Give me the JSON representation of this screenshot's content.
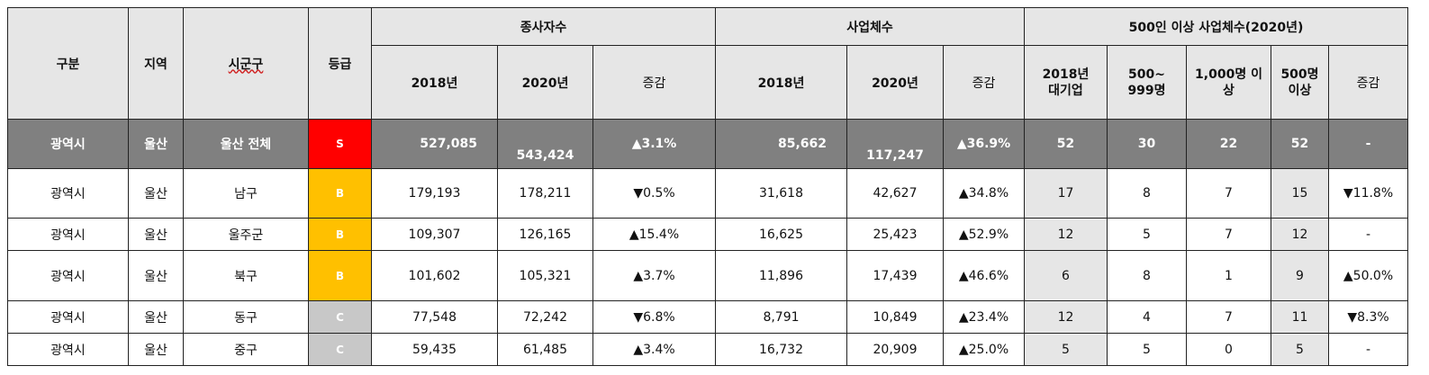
{
  "header": {
    "gubun": "구분",
    "region": "지역",
    "sigungu": "시군구",
    "grade": "등급",
    "employees_group": "종사자수",
    "businesses_group": "사업체수",
    "large_group": "500인 이상 사업체수(2020년)",
    "large_group_underlined": "사업체수",
    "y2018": "2018년",
    "y2020": "2020년",
    "change": "증감",
    "large_2018_line1": "2018년",
    "large_2018_line2": "대기업",
    "large_500_line1": "500~",
    "large_500_line2": "999명",
    "large_1000_line1": "1,000명 이",
    "large_1000_line2": "상",
    "large_500plus_line1": "500명",
    "large_500plus_line2": "이상",
    "large_change": "증감"
  },
  "grade_colors": {
    "S": "#ff0000",
    "B": "#ffc000",
    "C": "#c8c8c8"
  },
  "rows": [
    {
      "gubun": "광역시",
      "region": "울산",
      "sigungu": "울산 전체",
      "grade": "S",
      "emp_2018": "527,085",
      "emp_2020": "543,424",
      "emp_change": "▲3.1%",
      "biz_2018": "85,662",
      "biz_2020": "117,247",
      "biz_change": "▲36.9%",
      "large_2018": "52",
      "large_500_999": "30",
      "large_1000": "22",
      "large_500plus": "52",
      "large_change": "-"
    },
    {
      "gubun": "광역시",
      "region": "울산",
      "sigungu": "남구",
      "grade": "B",
      "emp_2018": "179,193",
      "emp_2020": "178,211",
      "emp_change": "▼0.5%",
      "biz_2018": "31,618",
      "biz_2020": "42,627",
      "biz_change": "▲34.8%",
      "large_2018": "17",
      "large_500_999": "8",
      "large_1000": "7",
      "large_500plus": "15",
      "large_change": "▼11.8%"
    },
    {
      "gubun": "광역시",
      "region": "울산",
      "sigungu": "울주군",
      "grade": "B",
      "emp_2018": "109,307",
      "emp_2020": "126,165",
      "emp_change": "▲15.4%",
      "biz_2018": "16,625",
      "biz_2020": "25,423",
      "biz_change": "▲52.9%",
      "large_2018": "12",
      "large_500_999": "5",
      "large_1000": "7",
      "large_500plus": "12",
      "large_change": "-"
    },
    {
      "gubun": "광역시",
      "region": "울산",
      "sigungu": "북구",
      "grade": "B",
      "emp_2018": "101,602",
      "emp_2020": "105,321",
      "emp_change": "▲3.7%",
      "biz_2018": "11,896",
      "biz_2020": "17,439",
      "biz_change": "▲46.6%",
      "large_2018": "6",
      "large_500_999": "8",
      "large_1000": "1",
      "large_500plus": "9",
      "large_change": "▲50.0%"
    },
    {
      "gubun": "광역시",
      "region": "울산",
      "sigungu": "동구",
      "grade": "C",
      "emp_2018": "77,548",
      "emp_2020": "72,242",
      "emp_change": "▼6.8%",
      "biz_2018": "8,791",
      "biz_2020": "10,849",
      "biz_change": "▲23.4%",
      "large_2018": "12",
      "large_500_999": "4",
      "large_1000": "7",
      "large_500plus": "11",
      "large_change": "▼8.3%"
    },
    {
      "gubun": "광역시",
      "region": "울산",
      "sigungu": "중구",
      "grade": "C",
      "emp_2018": "59,435",
      "emp_2020": "61,485",
      "emp_change": "▲3.4%",
      "biz_2018": "16,732",
      "biz_2020": "20,909",
      "biz_change": "▲25.0%",
      "large_2018": "5",
      "large_500_999": "5",
      "large_1000": "0",
      "large_500plus": "5",
      "large_change": "-"
    }
  ]
}
